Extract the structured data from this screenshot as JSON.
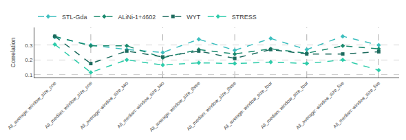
{
  "chart_data": {
    "type": "line",
    "ylabel": "Correlation",
    "categories": [
      "All_average: window_size_one",
      "All_median: window_size_one",
      "All_average: window_size_two",
      "All_median: window_size_two",
      "All_average: window_size_three",
      "All_median: window_size_three",
      "All_average: window_size_four",
      "All_median: window_size_four",
      "All_average: window_size_five",
      "All_median: window_size_five"
    ],
    "series": [
      {
        "name": "STL-Gda",
        "color": "#3dbfbf",
        "marker": "diamond",
        "line_style": "dashed",
        "values": [
          0.355,
          0.3,
          0.27,
          0.25,
          0.34,
          0.265,
          0.345,
          0.27,
          0.36,
          0.3
        ]
      },
      {
        "name": "ALiNi-1+4602",
        "color": "#1a8a6e",
        "marker": "diamond",
        "line_style": "dashed",
        "values": [
          0.36,
          0.295,
          0.295,
          0.215,
          0.27,
          0.24,
          0.275,
          0.245,
          0.295,
          0.275
        ]
      },
      {
        "name": "WYT",
        "color": "#1d6b5e",
        "marker": "square",
        "line_style": "dashed",
        "values": [
          0.36,
          0.175,
          0.26,
          0.22,
          0.26,
          0.21,
          0.27,
          0.24,
          0.24,
          0.255
        ]
      },
      {
        "name": "STRESS",
        "color": "#2dccaa",
        "marker": "diamond",
        "line_style": "dashed",
        "values": [
          0.305,
          0.115,
          0.2,
          0.165,
          0.18,
          0.175,
          0.185,
          0.175,
          0.2,
          0.13
        ]
      }
    ],
    "ylim": [
      0.08,
      0.42
    ],
    "yticks": [
      0.1,
      0.2,
      0.3
    ],
    "grid": true,
    "legend": "upper left"
  }
}
